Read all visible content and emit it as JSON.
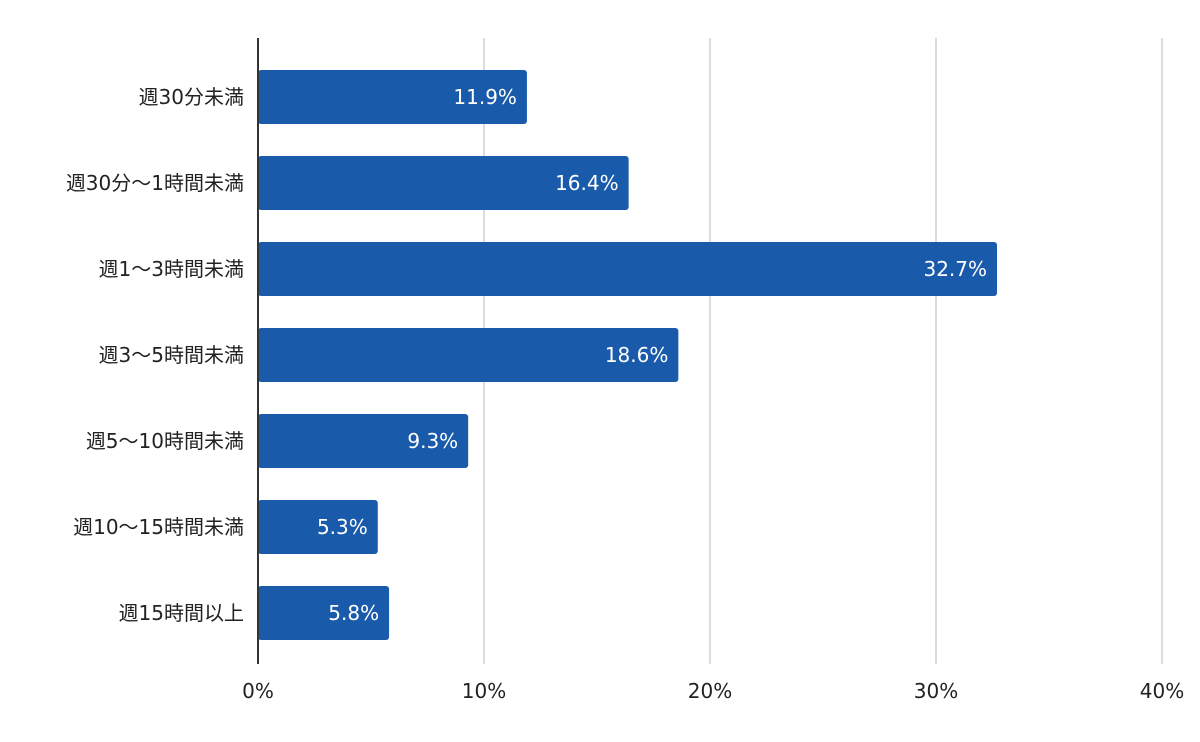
{
  "chart_data": {
    "type": "bar",
    "orientation": "horizontal",
    "categories": [
      "週30分未満",
      "週30分〜1時間未満",
      "週1〜3時間未満",
      "週3〜5時間未満",
      "週5〜10時間未満",
      "週10〜15時間未満",
      "週15時間以上"
    ],
    "values": [
      11.9,
      16.4,
      32.7,
      18.6,
      9.3,
      5.3,
      5.8
    ],
    "value_labels": [
      "11.9%",
      "16.4%",
      "32.7%",
      "18.6%",
      "9.3%",
      "5.3%",
      "5.8%"
    ],
    "xlim": [
      0,
      40
    ],
    "xticks": [
      0,
      10,
      20,
      30,
      40
    ],
    "xtick_labels": [
      "0%",
      "10%",
      "20%",
      "30%",
      "40%"
    ],
    "title": "",
    "xlabel": "",
    "ylabel": "",
    "grid": true,
    "bar_color": "#1a5aaa",
    "grid_color": "#d0d0d0",
    "axis_color": "#333333"
  }
}
